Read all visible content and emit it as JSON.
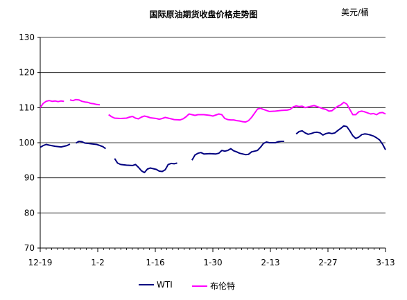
{
  "chart_data": {
    "type": "line",
    "title": "国际原油期货收盘价格走势图",
    "ylabel": "美元/桶",
    "xlabel": "",
    "ylim": [
      70,
      130
    ],
    "yticks": [
      70,
      80,
      90,
      100,
      110,
      120,
      130
    ],
    "xticks": [
      "12-19",
      "1-2",
      "1-16",
      "1-30",
      "2-13",
      "2-27",
      "3-13"
    ],
    "grid": true,
    "legend_position": "bottom",
    "series": [
      {
        "name": "WTI",
        "color": "#000080",
        "segments": [
          [
            [
              0,
              98.7
            ],
            [
              1,
              99.2
            ],
            [
              2,
              99.5
            ],
            [
              3,
              99.3
            ],
            [
              5,
              99.0
            ],
            [
              7,
              98.8
            ],
            [
              8,
              99.0
            ],
            [
              9,
              99.2
            ],
            [
              10,
              99.6
            ]
          ],
          [
            [
              12,
              99.9
            ],
            [
              13,
              100.4
            ],
            [
              14,
              100.3
            ],
            [
              15,
              99.9
            ],
            [
              17,
              99.7
            ],
            [
              19,
              99.5
            ],
            [
              21,
              98.9
            ],
            [
              22,
              98.3
            ]
          ],
          [
            [
              25,
              95.5
            ],
            [
              26,
              94.2
            ],
            [
              27,
              93.8
            ],
            [
              29,
              93.6
            ],
            [
              31,
              93.5
            ],
            [
              32,
              93.8
            ],
            [
              33,
              93.0
            ],
            [
              34,
              92.0
            ],
            [
              35,
              91.5
            ],
            [
              36,
              92.5
            ],
            [
              37,
              92.8
            ],
            [
              38,
              92.6
            ],
            [
              39,
              92.4
            ],
            [
              40,
              91.9
            ],
            [
              41,
              91.8
            ],
            [
              42,
              92.3
            ],
            [
              43,
              93.8
            ],
            [
              44,
              94.1
            ],
            [
              45,
              94.0
            ],
            [
              46,
              94.2
            ]
          ],
          [
            [
              51,
              95.0
            ],
            [
              52,
              96.5
            ],
            [
              53,
              97.0
            ],
            [
              54,
              97.2
            ],
            [
              55,
              96.8
            ],
            [
              57,
              96.9
            ],
            [
              59,
              96.8
            ],
            [
              60,
              97.0
            ],
            [
              61,
              97.8
            ],
            [
              62,
              97.6
            ],
            [
              63,
              97.8
            ],
            [
              64,
              98.3
            ],
            [
              65,
              97.7
            ],
            [
              66,
              97.4
            ],
            [
              67,
              97.0
            ],
            [
              68,
              96.8
            ],
            [
              69,
              96.6
            ],
            [
              70,
              96.7
            ],
            [
              71,
              97.4
            ],
            [
              72,
              97.6
            ],
            [
              73,
              97.8
            ],
            [
              74,
              98.7
            ],
            [
              75,
              99.8
            ],
            [
              76,
              100.2
            ],
            [
              77,
              100.0
            ],
            [
              79,
              100.0
            ],
            [
              80,
              100.3
            ],
            [
              81,
              100.4
            ],
            [
              82,
              100.4
            ]
          ],
          [
            [
              86,
              102.5
            ],
            [
              87,
              103.2
            ],
            [
              88,
              103.4
            ],
            [
              89,
              102.8
            ],
            [
              90,
              102.4
            ],
            [
              91,
              102.6
            ],
            [
              92,
              102.9
            ],
            [
              93,
              103.0
            ],
            [
              94,
              102.8
            ],
            [
              95,
              102.2
            ],
            [
              96,
              102.6
            ],
            [
              97,
              102.8
            ],
            [
              98,
              102.6
            ],
            [
              99,
              102.8
            ],
            [
              100,
              103.5
            ],
            [
              101,
              104.1
            ],
            [
              102,
              104.8
            ],
            [
              103,
              104.6
            ],
            [
              104,
              103.4
            ],
            [
              105,
              102.0
            ],
            [
              106,
              101.2
            ],
            [
              107,
              101.6
            ],
            [
              108,
              102.3
            ],
            [
              109,
              102.5
            ],
            [
              110,
              102.4
            ],
            [
              111,
              102.2
            ],
            [
              112,
              101.9
            ],
            [
              113,
              101.4
            ],
            [
              114,
              100.8
            ],
            [
              115,
              99.6
            ],
            [
              116,
              98.0
            ]
          ]
        ]
      },
      {
        "name": "布伦特",
        "color": "#ff00ff",
        "segments": [
          [
            [
              0,
              110.0
            ],
            [
              1,
              111.2
            ],
            [
              2,
              111.8
            ],
            [
              3,
              112.0
            ],
            [
              4,
              111.8
            ],
            [
              5,
              111.9
            ],
            [
              6,
              111.7
            ],
            [
              7,
              111.9
            ],
            [
              8,
              111.8
            ]
          ],
          [
            [
              10,
              112.2
            ],
            [
              11,
              112.0
            ],
            [
              12,
              112.3
            ],
            [
              13,
              112.2
            ],
            [
              14,
              111.8
            ],
            [
              15,
              111.6
            ],
            [
              16,
              111.5
            ],
            [
              17,
              111.2
            ],
            [
              18,
              111.1
            ],
            [
              19,
              110.9
            ],
            [
              20,
              110.8
            ]
          ],
          [
            [
              23,
              108.0
            ],
            [
              24,
              107.4
            ],
            [
              25,
              107.0
            ],
            [
              27,
              106.9
            ],
            [
              29,
              107.0
            ],
            [
              30,
              107.3
            ],
            [
              31,
              107.5
            ],
            [
              32,
              107.0
            ],
            [
              33,
              106.8
            ],
            [
              34,
              107.3
            ],
            [
              35,
              107.6
            ],
            [
              36,
              107.4
            ],
            [
              37,
              107.1
            ],
            [
              38,
              107.0
            ],
            [
              39,
              106.9
            ],
            [
              40,
              106.7
            ],
            [
              41,
              106.9
            ],
            [
              42,
              107.2
            ],
            [
              43,
              107.0
            ],
            [
              44,
              106.8
            ],
            [
              45,
              106.6
            ],
            [
              47,
              106.5
            ],
            [
              48,
              106.8
            ],
            [
              49,
              107.4
            ],
            [
              50,
              108.2
            ],
            [
              51,
              108.0
            ],
            [
              52,
              107.8
            ],
            [
              53,
              108.0
            ],
            [
              55,
              108.0
            ],
            [
              57,
              107.8
            ],
            [
              58,
              107.6
            ],
            [
              59,
              107.9
            ],
            [
              60,
              108.2
            ],
            [
              61,
              108.0
            ],
            [
              62,
              106.9
            ],
            [
              63,
              106.6
            ],
            [
              64,
              106.5
            ],
            [
              65,
              106.5
            ],
            [
              66,
              106.3
            ],
            [
              67,
              106.2
            ],
            [
              68,
              106.0
            ],
            [
              69,
              105.9
            ],
            [
              70,
              106.3
            ],
            [
              71,
              107.2
            ],
            [
              72,
              108.4
            ],
            [
              73,
              109.6
            ],
            [
              74,
              109.8
            ],
            [
              75,
              109.5
            ],
            [
              76,
              109.2
            ],
            [
              77,
              108.9
            ],
            [
              79,
              109.0
            ],
            [
              80,
              109.1
            ],
            [
              81,
              109.2
            ],
            [
              83,
              109.3
            ],
            [
              84,
              109.5
            ],
            [
              85,
              110.2
            ],
            [
              86,
              110.5
            ],
            [
              87,
              110.3
            ],
            [
              88,
              110.4
            ],
            [
              89,
              110.0
            ],
            [
              90,
              110.2
            ],
            [
              91,
              110.4
            ],
            [
              92,
              110.6
            ],
            [
              93,
              110.3
            ],
            [
              94,
              110.0
            ],
            [
              95,
              109.7
            ],
            [
              96,
              109.5
            ],
            [
              97,
              109.0
            ],
            [
              98,
              109.1
            ],
            [
              99,
              109.8
            ],
            [
              100,
              110.4
            ],
            [
              101,
              110.8
            ],
            [
              102,
              111.5
            ],
            [
              103,
              111.0
            ],
            [
              104,
              109.5
            ],
            [
              105,
              108.0
            ],
            [
              106,
              108.0
            ],
            [
              107,
              108.8
            ],
            [
              108,
              109.0
            ],
            [
              109,
              108.8
            ],
            [
              110,
              108.5
            ],
            [
              111,
              108.2
            ],
            [
              112,
              108.3
            ],
            [
              113,
              108.0
            ],
            [
              114,
              108.5
            ],
            [
              115,
              108.6
            ],
            [
              116,
              108.2
            ]
          ]
        ]
      }
    ]
  }
}
